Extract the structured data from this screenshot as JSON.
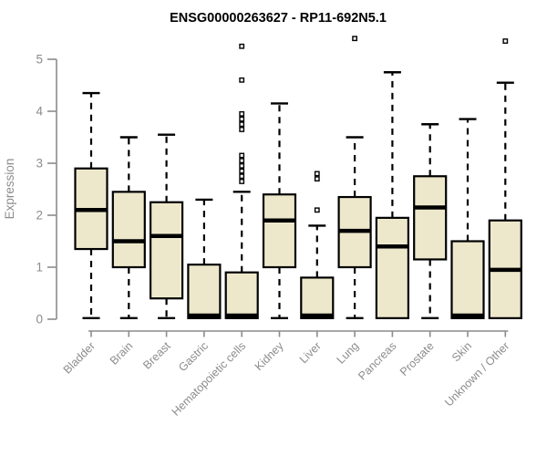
{
  "chart_data": {
    "type": "boxplot",
    "title": "ENSG00000263627 - RP11-692N5.1",
    "ylabel": "Expression",
    "xlabel": "",
    "ylim": [
      0,
      5.5
    ],
    "yticks": [
      "0",
      "1",
      "2",
      "3",
      "4",
      "5"
    ],
    "grid": false,
    "legend": "none",
    "categories": [
      "Bladder",
      "Brain",
      "Breast",
      "Gastric",
      "Hematopoietic cells",
      "Kidney",
      "Liver",
      "Lung",
      "Pancreas",
      "Prostate",
      "Skin",
      "Unknown / Other"
    ],
    "series": [
      {
        "name": "Bladder",
        "whisker_low": 0.02,
        "q1": 1.35,
        "median": 2.1,
        "q3": 2.9,
        "whisker_high": 4.35,
        "outliers": []
      },
      {
        "name": "Brain",
        "whisker_low": 0.02,
        "q1": 1.0,
        "median": 1.5,
        "q3": 2.45,
        "whisker_high": 3.5,
        "outliers": []
      },
      {
        "name": "Breast",
        "whisker_low": 0.02,
        "q1": 0.4,
        "median": 1.6,
        "q3": 2.25,
        "whisker_high": 3.55,
        "outliers": []
      },
      {
        "name": "Gastric",
        "whisker_low": 0.02,
        "q1": 0.02,
        "median": 0.07,
        "q3": 1.05,
        "whisker_high": 2.3,
        "outliers": []
      },
      {
        "name": "Hematopoietic cells",
        "whisker_low": 0.02,
        "q1": 0.02,
        "median": 0.07,
        "q3": 0.9,
        "whisker_high": 2.45,
        "outliers": [
          2.65,
          2.75,
          2.85,
          2.95,
          3.05,
          3.15,
          3.65,
          3.75,
          3.85,
          3.95,
          4.6,
          5.25
        ]
      },
      {
        "name": "Kidney",
        "whisker_low": 0.02,
        "q1": 1.0,
        "median": 1.9,
        "q3": 2.4,
        "whisker_high": 4.15,
        "outliers": []
      },
      {
        "name": "Liver",
        "whisker_low": 0.02,
        "q1": 0.02,
        "median": 0.07,
        "q3": 0.8,
        "whisker_high": 1.8,
        "outliers": [
          2.1,
          2.7,
          2.8
        ]
      },
      {
        "name": "Lung",
        "whisker_low": 0.02,
        "q1": 1.0,
        "median": 1.7,
        "q3": 2.35,
        "whisker_high": 3.5,
        "outliers": [
          5.4
        ]
      },
      {
        "name": "Pancreas",
        "whisker_low": 0.02,
        "q1": 0.02,
        "median": 1.4,
        "q3": 1.95,
        "whisker_high": 4.75,
        "outliers": []
      },
      {
        "name": "Prostate",
        "whisker_low": 0.02,
        "q1": 1.15,
        "median": 2.15,
        "q3": 2.75,
        "whisker_high": 3.75,
        "outliers": []
      },
      {
        "name": "Skin",
        "whisker_low": 0.02,
        "q1": 0.02,
        "median": 0.07,
        "q3": 1.5,
        "whisker_high": 3.85,
        "outliers": []
      },
      {
        "name": "Unknown / Other",
        "whisker_low": 0.02,
        "q1": 0.02,
        "median": 0.95,
        "q3": 1.9,
        "whisker_high": 4.55,
        "outliers": [
          5.35
        ]
      }
    ],
    "style": {
      "box_fill": "#EDE8CC",
      "box_stroke": "#000000",
      "median_color": "#000000",
      "whisker_color": "#000000",
      "outlier_fill": "#FFFFFF",
      "outlier_stroke": "#000000",
      "axis_color": "#8C8C8C",
      "tick_label_color": "#8C8C8C",
      "title_color": "#000000",
      "background": "#FFFFFF"
    }
  }
}
